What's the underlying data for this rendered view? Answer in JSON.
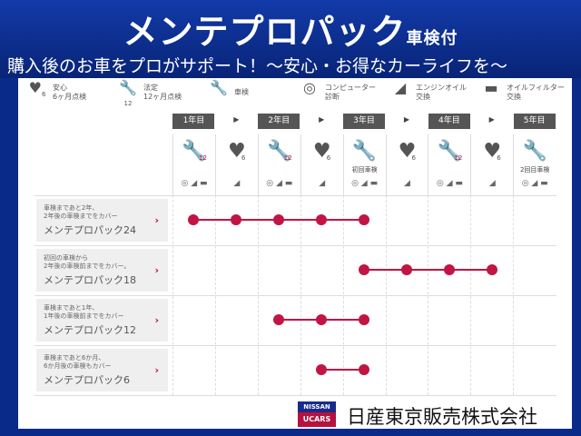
{
  "header": {
    "title": "メンテプロパック",
    "title_suffix": "車検付",
    "subtitle": "購入後のお車をプロがサポート！～安心・お得なカーライフを～"
  },
  "legend": [
    {
      "icon": "heart-icon",
      "badge": "6",
      "label1": "安心",
      "label2": "6ヶ月点検"
    },
    {
      "icon": "wrench-icon",
      "badge": "12",
      "label1": "法定",
      "label2": "12ヶ月点検"
    },
    {
      "icon": "wrench-icon",
      "badge": "",
      "label1": "車検",
      "label2": ""
    },
    {
      "icon": "computer-diagnosis-icon",
      "badge": "",
      "label1": "コンピューター",
      "label2": "診断"
    },
    {
      "icon": "oil-can-icon",
      "badge": "",
      "label1": "エンジンオイル",
      "label2": "交換"
    },
    {
      "icon": "oil-filter-icon",
      "badge": "",
      "label1": "オイルフィルター",
      "label2": "交換"
    }
  ],
  "years": [
    "1年目",
    "2年目",
    "3年目",
    "4年目",
    "5年目"
  ],
  "timeline": [
    {
      "type": "wrench",
      "badge": "12",
      "note": "",
      "services": "◎ ◢ ▬"
    },
    {
      "type": "heart",
      "badge": "6",
      "note": "",
      "services": "◢"
    },
    {
      "type": "wrench",
      "badge": "12",
      "note": "",
      "services": "◎ ◢ ▬"
    },
    {
      "type": "heart",
      "badge": "6",
      "note": "",
      "services": "◢"
    },
    {
      "type": "wrench",
      "badge": "",
      "note": "初回車検",
      "services": "◎ ◢ ▬"
    },
    {
      "type": "heart",
      "badge": "6",
      "note": "",
      "services": "◢"
    },
    {
      "type": "wrench",
      "badge": "12",
      "note": "",
      "services": "◎ ◢ ▬"
    },
    {
      "type": "heart",
      "badge": "6",
      "note": "",
      "services": "◢"
    },
    {
      "type": "wrench",
      "badge": "",
      "note": "2回目車検",
      "services": "◎ ◢ ▬"
    }
  ],
  "plans": [
    {
      "desc1": "車検まであと2年、",
      "desc2": "2年後の車検までをカバー",
      "name": "メンテプロパック24",
      "coverage": [
        0,
        4
      ]
    },
    {
      "desc1": "初回の車検から",
      "desc2": "2年後の車検前までをカバー。",
      "name": "メンテプロパック18",
      "coverage": [
        4,
        7
      ]
    },
    {
      "desc1": "車検まであと1年、",
      "desc2": "1年後の車検前までをカバー",
      "name": "メンテプロパック12",
      "coverage": [
        2,
        4
      ]
    },
    {
      "desc1": "車検まであと6か月、",
      "desc2": "6か月後の車検もカバー",
      "name": "メンテプロパック6",
      "coverage": [
        3,
        4
      ]
    }
  ],
  "footer": {
    "logo_top": "NISSAN",
    "logo_bottom": "UCARS",
    "company": "日産東京販売株式会社"
  },
  "colors": {
    "accent": "#c01545",
    "header_blue": "#0a2a8a"
  }
}
